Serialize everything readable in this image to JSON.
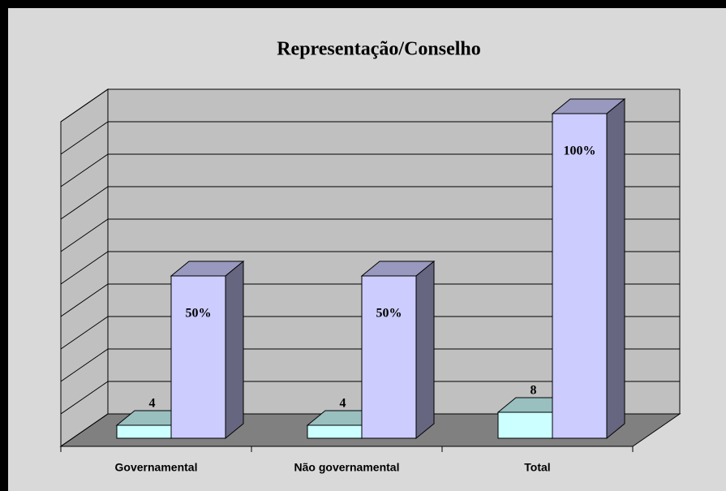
{
  "chart_data": {
    "type": "bar3d",
    "title": "Representação/Conselho",
    "categories": [
      "Governamental",
      "Não governamental",
      "Total"
    ],
    "series": [
      {
        "color": "#ccffff",
        "values": [
          4,
          4,
          8
        ]
      },
      {
        "color": "#ccccff",
        "values": [
          50,
          50,
          100
        ],
        "value_labels": [
          "50%",
          "50%",
          "100%"
        ]
      }
    ],
    "ylim": [
      0,
      100
    ],
    "yticks": [
      0,
      10,
      20,
      30,
      40,
      50,
      60,
      70,
      80,
      90,
      100
    ],
    "grid": true
  }
}
